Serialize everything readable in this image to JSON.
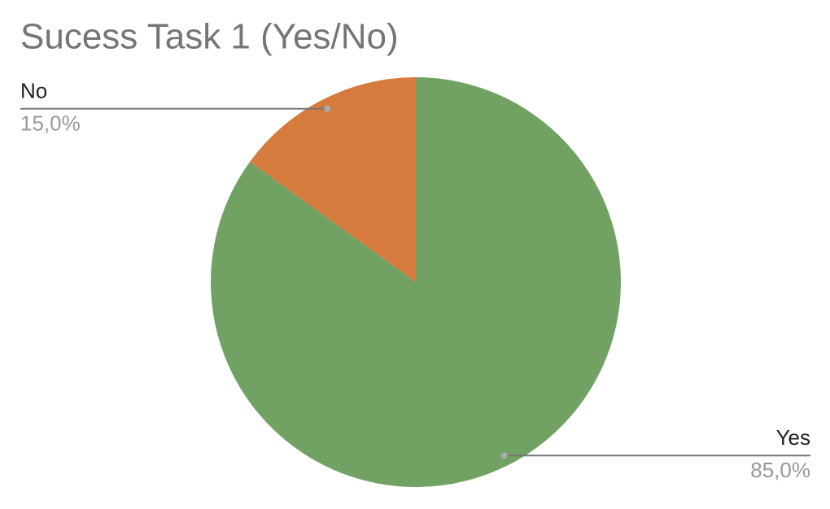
{
  "chart_data": {
    "type": "pie",
    "title": "Sucess Task 1 (Yes/No)",
    "categories": [
      "Yes",
      "No"
    ],
    "values": [
      85,
      15
    ],
    "value_labels": [
      "85,0%",
      "15,0%"
    ],
    "colors": [
      "#71a264",
      "#d57b3e"
    ]
  }
}
